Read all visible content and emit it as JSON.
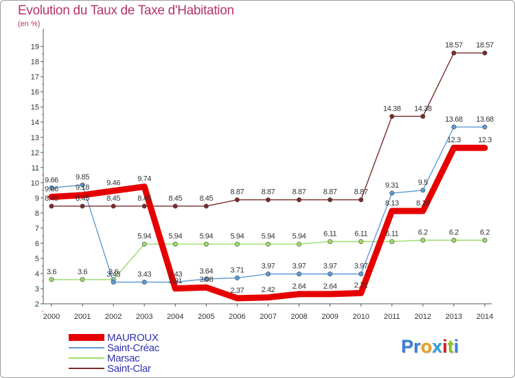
{
  "title": "Evolution du Taux de Taxe d'Habitation",
  "unit": "(en %)",
  "logo": {
    "text": "Proxiti",
    "colors": [
      "#3a7fd0",
      "#3a7fd0",
      "#e8a020",
      "#2f9fd8",
      "#d02020",
      "#8abf2a",
      "#3a7fd0"
    ]
  },
  "chart_data": {
    "type": "line",
    "title": "Evolution du Taux de Taxe d'Habitation",
    "ylabel": "(en %)",
    "xlabel": "",
    "x": [
      "2000",
      "2001",
      "2002",
      "2003",
      "2004",
      "2005",
      "2006",
      "2007",
      "2008",
      "2009",
      "2010",
      "2011",
      "2012",
      "2013",
      "2014"
    ],
    "yticks": [
      2,
      3,
      4,
      5,
      6,
      7,
      8,
      9,
      10,
      11,
      12,
      13,
      14,
      15,
      16,
      17,
      18,
      19
    ],
    "ylim": [
      2,
      19.8
    ],
    "grid": false,
    "legend": "bottom-left",
    "series": [
      {
        "name": "MAUROUX",
        "color": "#e60000",
        "width": 9,
        "values": [
          9.06,
          9.18,
          9.46,
          9.74,
          3.01,
          3.08,
          2.37,
          2.42,
          2.64,
          2.64,
          2.71,
          8.13,
          8.13,
          12.3,
          12.3
        ],
        "labels": [
          "9.06",
          "9.18",
          "9.46",
          "9.74",
          "3.01",
          "3.08",
          "2.37",
          "2.42",
          "2.64",
          "2.64",
          "2.71",
          "8.13",
          "8.13",
          "12.3",
          "12.3"
        ]
      },
      {
        "name": "Saint-Créac",
        "color": "#5b9bd5",
        "width": 1.4,
        "values": [
          9.66,
          9.85,
          3.43,
          3.43,
          3.43,
          3.64,
          3.71,
          3.97,
          3.97,
          3.97,
          3.97,
          9.31,
          9.5,
          13.68,
          13.68
        ],
        "labels": [
          "9.66",
          "9.85",
          "3.43",
          "3.43",
          "3.43",
          "3.64",
          "3.71",
          "3.97",
          "3.97",
          "3.97",
          "3.97",
          "9.31",
          "9.5",
          "13.68",
          "13.68"
        ]
      },
      {
        "name": "Marsac",
        "color": "#99dd66",
        "width": 1.4,
        "values": [
          3.6,
          3.6,
          3.6,
          5.94,
          5.94,
          5.94,
          5.94,
          5.94,
          5.94,
          6.11,
          6.11,
          6.11,
          6.2,
          6.2,
          6.2
        ],
        "labels": [
          "3.6",
          "3.6",
          "3.6",
          "5.94",
          "5.94",
          "5.94",
          "5.94",
          "5.94",
          "5.94",
          "6.11",
          "6.11",
          "6.11",
          "6.2",
          "6.2",
          "6.2"
        ]
      },
      {
        "name": "Saint-Clar",
        "color": "#7a2a2a",
        "width": 1.4,
        "values": [
          8.45,
          8.45,
          8.45,
          8.45,
          8.45,
          8.45,
          8.87,
          8.87,
          8.87,
          8.87,
          8.87,
          14.38,
          14.38,
          18.57,
          18.57
        ],
        "labels": [
          "8.45",
          "8.45",
          "8.45",
          "8.45",
          "8.45",
          "8.45",
          "8.87",
          "8.87",
          "8.87",
          "8.87",
          "8.87",
          "14.38",
          "14.38",
          "18.57",
          "18.57"
        ]
      }
    ]
  }
}
